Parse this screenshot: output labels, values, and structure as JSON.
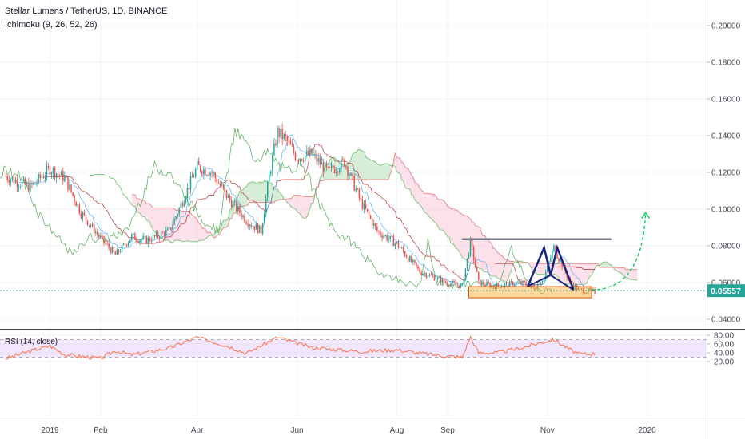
{
  "header": {
    "title": "Stellar Lumens / TetherUS, 1D, BINANCE",
    "indicator": "Ichimoku (9, 26, 52, 26)",
    "rsi_label": "RSI (14, close)"
  },
  "price_badge": "0.05557",
  "colors": {
    "up": "#26a69a",
    "down": "#ef5350",
    "cloud_bull": "#a5d6a7",
    "cloud_bear": "#f8bbd0",
    "rsi_line": "#ff7043",
    "rsi_band": "#e8d6fb",
    "pattern": "#1a237e",
    "resistance": "#787b86",
    "support_box": "#ffa726",
    "projection": "#00c853"
  },
  "chart_data": [
    {
      "type": "candlestick",
      "title": "Stellar Lumens / TetherUS, 1D, BINANCE",
      "x_ticks": [
        "2019",
        "Feb",
        "Apr",
        "Jun",
        "Aug",
        "Sep",
        "Nov",
        "2020"
      ],
      "y_ticks": [
        "0.20000",
        "0.18000",
        "0.16000",
        "0.14000",
        "0.12000",
        "0.10000",
        "0.08000",
        "0.06000",
        "0.04000"
      ],
      "ylim": [
        0.0355,
        0.2145
      ],
      "last_price": 0.05557,
      "close_series": {
        "x": [
          "2018-12-05",
          "2018-12-20",
          "2019-01-01",
          "2019-01-10",
          "2019-01-20",
          "2019-02-01",
          "2019-02-10",
          "2019-02-20",
          "2019-03-01",
          "2019-03-15",
          "2019-04-01",
          "2019-04-10",
          "2019-04-20",
          "2019-05-01",
          "2019-05-10",
          "2019-05-15",
          "2019-05-20",
          "2019-05-25",
          "2019-06-01",
          "2019-06-10",
          "2019-06-20",
          "2019-06-30",
          "2019-07-10",
          "2019-07-20",
          "2019-08-01",
          "2019-08-15",
          "2019-09-01",
          "2019-09-10",
          "2019-09-15",
          "2019-09-20",
          "2019-10-01",
          "2019-10-15",
          "2019-10-25",
          "2019-10-30",
          "2019-11-05",
          "2019-11-15",
          "2019-11-20",
          "2019-11-30"
        ],
        "values": [
          0.118,
          0.112,
          0.122,
          0.117,
          0.098,
          0.084,
          0.075,
          0.085,
          0.083,
          0.088,
          0.123,
          0.12,
          0.106,
          0.094,
          0.088,
          0.118,
          0.142,
          0.138,
          0.128,
          0.13,
          0.12,
          0.126,
          0.104,
          0.088,
          0.081,
          0.066,
          0.06,
          0.058,
          0.082,
          0.06,
          0.058,
          0.06,
          0.058,
          0.063,
          0.079,
          0.06,
          0.056,
          0.055
        ]
      },
      "ichimoku": {
        "params": [
          9,
          26,
          52,
          26
        ]
      }
    },
    {
      "type": "line",
      "title": "RSI (14, close)",
      "y_ticks": [
        "80.00",
        "60.00",
        "40.00",
        "20.00"
      ],
      "ylim": [
        20,
        80
      ],
      "bands": [
        70,
        30
      ],
      "x": [
        "2018-12-05",
        "2018-12-20",
        "2019-01-01",
        "2019-01-10",
        "2019-02-01",
        "2019-02-10",
        "2019-02-20",
        "2019-03-15",
        "2019-04-01",
        "2019-04-20",
        "2019-05-01",
        "2019-05-20",
        "2019-06-10",
        "2019-07-10",
        "2019-08-01",
        "2019-08-15",
        "2019-09-01",
        "2019-09-10",
        "2019-09-15",
        "2019-09-20",
        "2019-10-01",
        "2019-10-15",
        "2019-10-30",
        "2019-11-05",
        "2019-11-15",
        "2019-11-20",
        "2019-11-30"
      ],
      "values": [
        27,
        44,
        56,
        36,
        27,
        45,
        35,
        51,
        75,
        55,
        39,
        75,
        52,
        43,
        47,
        39,
        32,
        30,
        76,
        40,
        40,
        50,
        65,
        70,
        47,
        37,
        38
      ]
    }
  ]
}
